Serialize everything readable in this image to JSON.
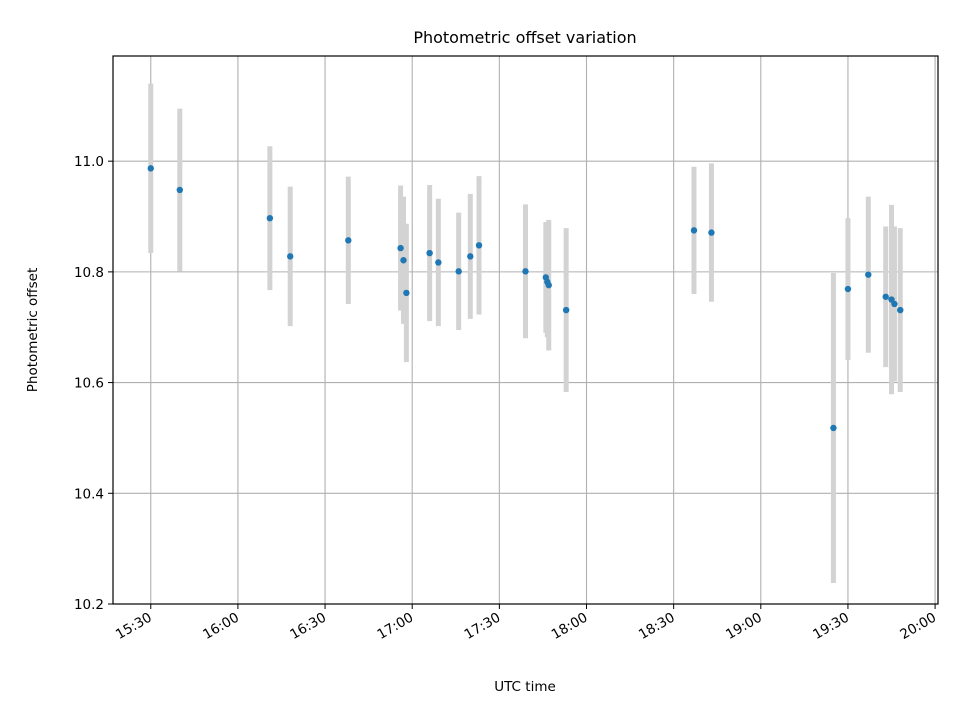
{
  "chart_data": {
    "type": "scatter",
    "title": "Photometric offset variation",
    "xlabel": "UTC time",
    "ylabel": "Photometric offset",
    "x_ticks": [
      "15:30",
      "16:00",
      "16:30",
      "17:00",
      "17:30",
      "18:00",
      "18:30",
      "19:00",
      "19:30",
      "20:00"
    ],
    "y_ticks": [
      "10.2",
      "10.4",
      "10.6",
      "10.8",
      "11.0"
    ],
    "xlim": [
      "15:17",
      "20:01"
    ],
    "ylim": [
      10.2,
      11.19
    ],
    "grid": true,
    "colors": {
      "marker": "#1f77b4",
      "errorbar": "#d3d3d3",
      "grid": "#b0b0b0"
    },
    "points": [
      {
        "x": "15:30",
        "y": 10.987,
        "err": 0.153
      },
      {
        "x": "15:40",
        "y": 10.948,
        "err": 0.147
      },
      {
        "x": "16:11",
        "y": 10.897,
        "err": 0.13
      },
      {
        "x": "16:18",
        "y": 10.828,
        "err": 0.126
      },
      {
        "x": "16:38",
        "y": 10.857,
        "err": 0.115
      },
      {
        "x": "16:56",
        "y": 10.843,
        "err": 0.113
      },
      {
        "x": "16:57",
        "y": 10.821,
        "err": 0.115
      },
      {
        "x": "16:58",
        "y": 10.762,
        "err": 0.125
      },
      {
        "x": "17:06",
        "y": 10.834,
        "err": 0.123
      },
      {
        "x": "17:09",
        "y": 10.817,
        "err": 0.115
      },
      {
        "x": "17:16",
        "y": 10.801,
        "err": 0.106
      },
      {
        "x": "17:20",
        "y": 10.828,
        "err": 0.113
      },
      {
        "x": "17:23",
        "y": 10.848,
        "err": 0.125
      },
      {
        "x": "17:39",
        "y": 10.801,
        "err": 0.121
      },
      {
        "x": "17:46",
        "y": 10.79,
        "err": 0.1
      },
      {
        "x": "17:46:30",
        "y": 10.782,
        "err": 0.1
      },
      {
        "x": "17:47",
        "y": 10.776,
        "err": 0.118
      },
      {
        "x": "17:53",
        "y": 10.731,
        "err": 0.148
      },
      {
        "x": "18:37",
        "y": 10.875,
        "err": 0.115
      },
      {
        "x": "18:43",
        "y": 10.871,
        "err": 0.125
      },
      {
        "x": "19:25",
        "y": 10.518,
        "err": 0.28
      },
      {
        "x": "19:30",
        "y": 10.769,
        "err": 0.128
      },
      {
        "x": "19:37",
        "y": 10.795,
        "err": 0.141
      },
      {
        "x": "19:43",
        "y": 10.755,
        "err": 0.127
      },
      {
        "x": "19:45",
        "y": 10.75,
        "err": 0.171
      },
      {
        "x": "19:46",
        "y": 10.742,
        "err": 0.14
      },
      {
        "x": "19:48",
        "y": 10.731,
        "err": 0.148
      }
    ]
  }
}
